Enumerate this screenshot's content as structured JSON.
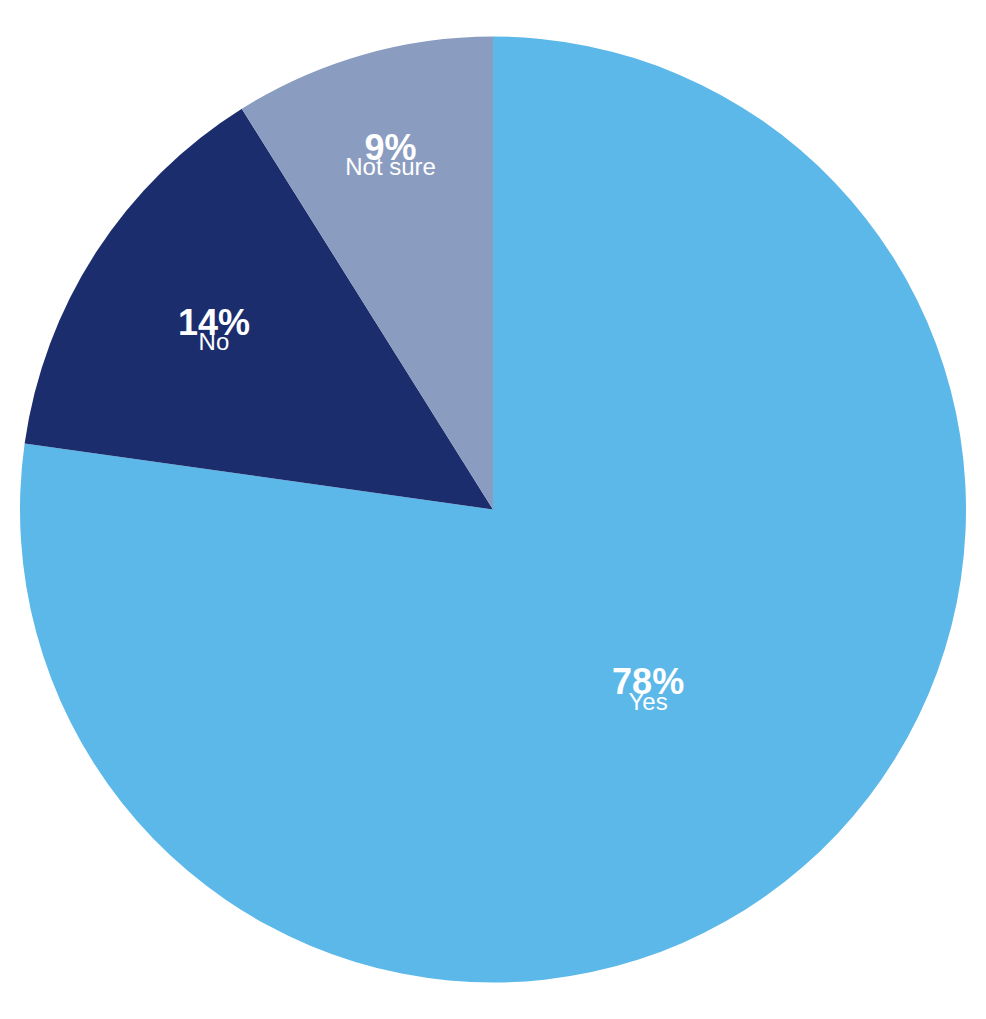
{
  "chart_data": {
    "type": "pie",
    "categories": [
      "Yes",
      "No",
      "Not sure"
    ],
    "values": [
      78,
      14,
      9
    ],
    "value_labels": [
      "78%",
      "14%",
      "9%"
    ],
    "colors": [
      "#5BB8E8",
      "#1C2D6E",
      "#8A9CC0"
    ],
    "data_labels": true
  }
}
